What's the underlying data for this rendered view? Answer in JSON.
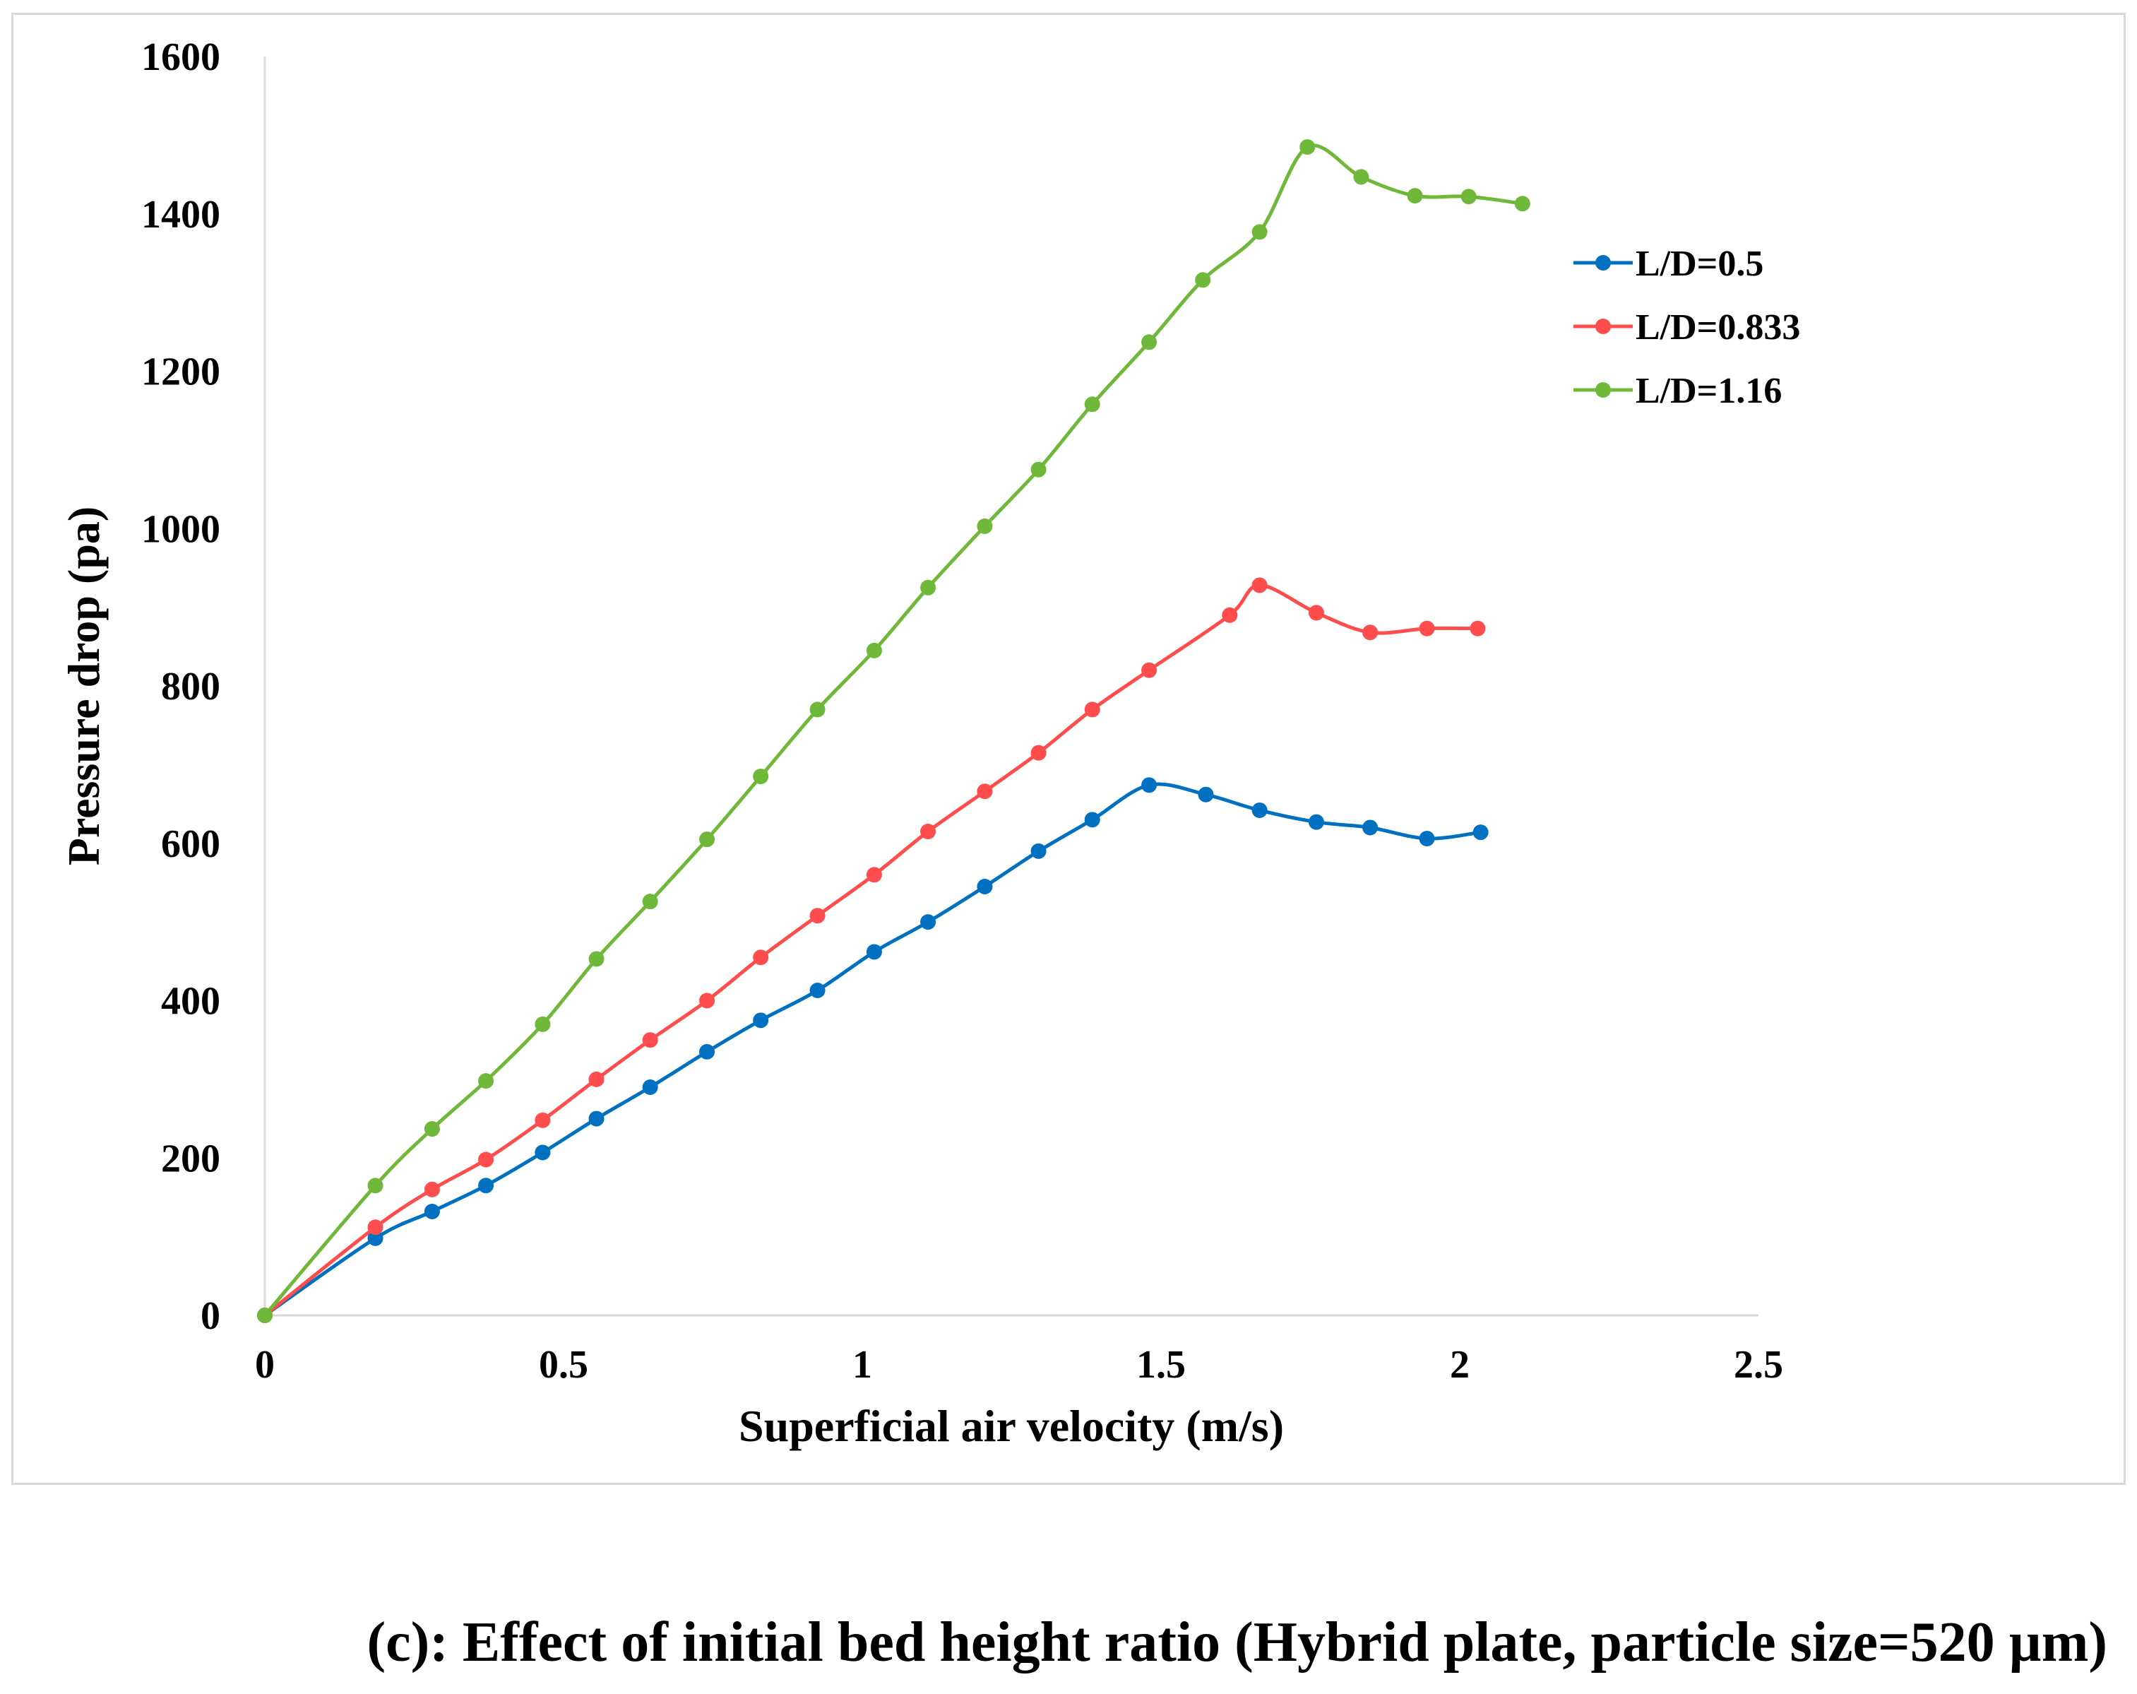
{
  "chart_data": {
    "type": "line",
    "title": "",
    "xlabel": "Superficial air velocity (m/s)",
    "ylabel": "Pressure drop (pa)",
    "xlim": [
      0,
      2.5
    ],
    "ylim": [
      0,
      1600
    ],
    "x_ticks": [
      "0",
      "0.5",
      "1",
      "1.5",
      "2",
      "2.5"
    ],
    "x_tick_values": [
      0,
      0.5,
      1,
      1.5,
      2,
      2.5
    ],
    "y_ticks": [
      "0",
      "200",
      "400",
      "600",
      "800",
      "1000",
      "1200",
      "1400",
      "1600"
    ],
    "y_tick_values": [
      0,
      200,
      400,
      600,
      800,
      1000,
      1200,
      1400,
      1600
    ],
    "grid": false,
    "legend_position": "right",
    "series": [
      {
        "name": "L/D=0.5",
        "color": "#0070c0",
        "x": [
          0,
          0.185,
          0.28,
          0.37,
          0.465,
          0.555,
          0.645,
          0.74,
          0.83,
          0.925,
          1.02,
          1.11,
          1.205,
          1.295,
          1.385,
          1.48,
          1.575,
          1.665,
          1.76,
          1.85,
          1.945,
          2.035
        ],
        "y": [
          0,
          98,
          132,
          165,
          207,
          250,
          290,
          335,
          375,
          413,
          462,
          500,
          545,
          590,
          630,
          674,
          662,
          642,
          627,
          620,
          606,
          614
        ]
      },
      {
        "name": "L/D=0.833",
        "color": "#ff4d4d",
        "x": [
          0,
          0.185,
          0.28,
          0.37,
          0.465,
          0.555,
          0.645,
          0.74,
          0.83,
          0.925,
          1.02,
          1.11,
          1.205,
          1.295,
          1.385,
          1.48,
          1.615,
          1.665,
          1.76,
          1.85,
          1.945,
          2.03
        ],
        "y": [
          0,
          112,
          160,
          198,
          248,
          300,
          350,
          400,
          455,
          508,
          560,
          615,
          666,
          715,
          770,
          820,
          890,
          928,
          893,
          868,
          873,
          873
        ]
      },
      {
        "name": "L/D=1.16",
        "color": "#70b83a",
        "x": [
          0,
          0.185,
          0.28,
          0.37,
          0.465,
          0.555,
          0.645,
          0.74,
          0.83,
          0.925,
          1.02,
          1.11,
          1.205,
          1.295,
          1.385,
          1.48,
          1.57,
          1.665,
          1.745,
          1.835,
          1.925,
          2.015,
          2.105
        ],
        "y": [
          0,
          165,
          237,
          298,
          370,
          453,
          526,
          605,
          685,
          770,
          845,
          925,
          1003,
          1075,
          1158,
          1237,
          1316,
          1377,
          1485,
          1447,
          1423,
          1422,
          1413
        ]
      }
    ]
  },
  "caption": "(c): Effect of initial bed height ratio (Hybrid plate, particle size=520 µm)"
}
